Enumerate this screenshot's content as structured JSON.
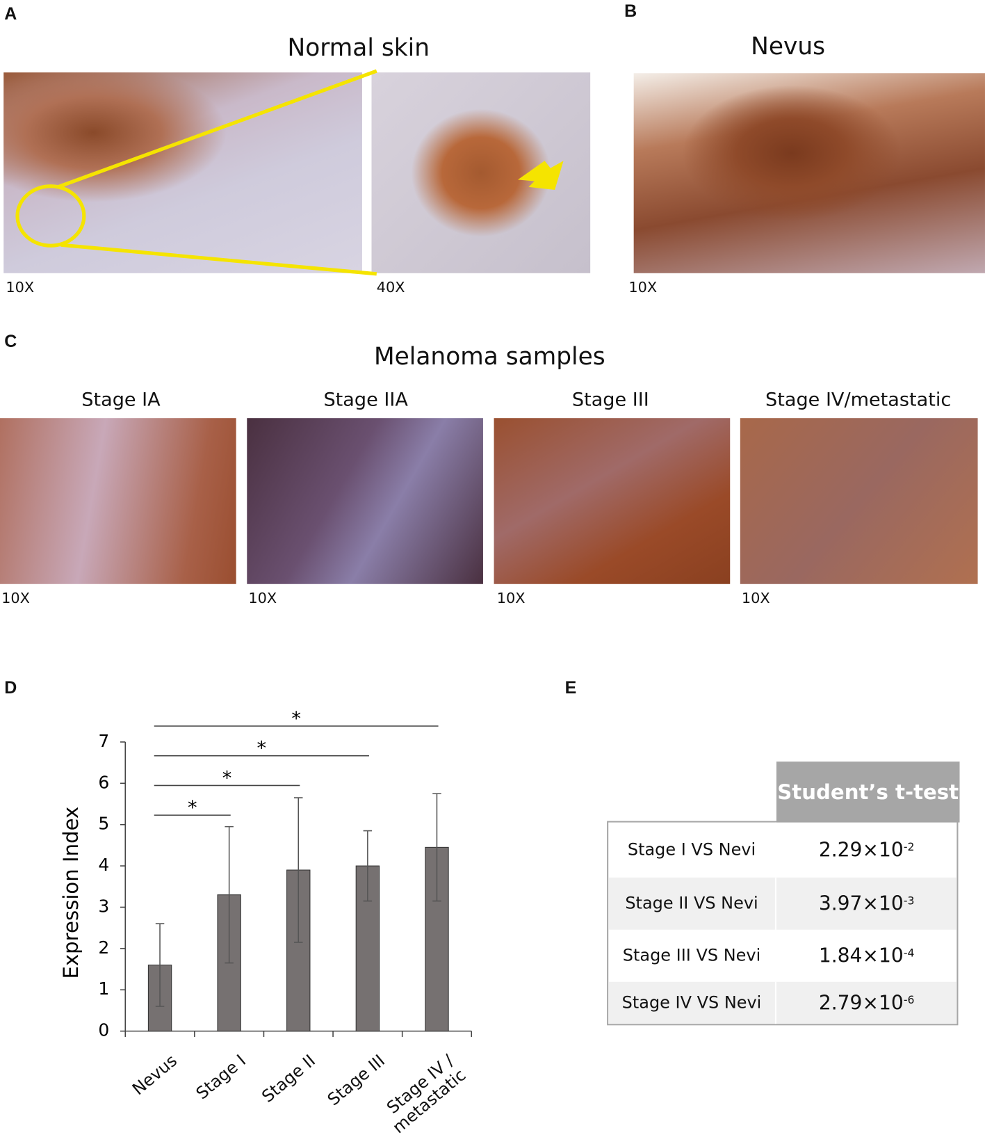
{
  "panels": {
    "a": {
      "label": "A",
      "title": "Normal skin",
      "mag_left": "10X",
      "mag_right": "40X"
    },
    "b": {
      "label": "B",
      "title": "Nevus",
      "mag": "10X"
    },
    "c": {
      "label": "C",
      "title": "Melanoma samples",
      "stages": [
        {
          "title": "Stage IA",
          "mag": "10X"
        },
        {
          "title": "Stage IIA",
          "mag": "10X"
        },
        {
          "title": "Stage III",
          "mag": "10X"
        },
        {
          "title": "Stage IV/metastatic",
          "mag": "10X"
        }
      ]
    },
    "d": {
      "label": "D"
    },
    "e": {
      "label": "E"
    }
  },
  "chart_data": {
    "type": "bar",
    "y_label": "Expression Index",
    "categories": [
      "Nevus",
      "Stage I",
      "Stage II",
      "Stage III",
      "Stage IV / metastatic"
    ],
    "values": [
      1.6,
      3.3,
      3.9,
      4.0,
      4.45
    ],
    "errors": [
      1.0,
      1.65,
      1.75,
      0.85,
      1.3
    ],
    "color": "#767171",
    "ylim": [
      0,
      7
    ],
    "yticks": [
      0,
      1,
      2,
      3,
      4,
      5,
      6,
      7
    ],
    "annotations": [
      "*",
      "*",
      "*",
      "*"
    ]
  },
  "table": {
    "header": "Student’s t-test",
    "rows": [
      [
        "Stage I VS Nevi",
        {
          "base": "2.29×10",
          "exponent": "-2"
        }
      ],
      [
        "Stage II VS Nevi",
        {
          "base": "3.97×10",
          "exponent": "-3"
        }
      ],
      [
        "Stage III VS Nevi",
        {
          "base": "1.84×10",
          "exponent": "-4"
        }
      ],
      [
        "Stage IV VS Nevi",
        {
          "base": "2.79×10",
          "exponent": "-6"
        }
      ]
    ]
  }
}
